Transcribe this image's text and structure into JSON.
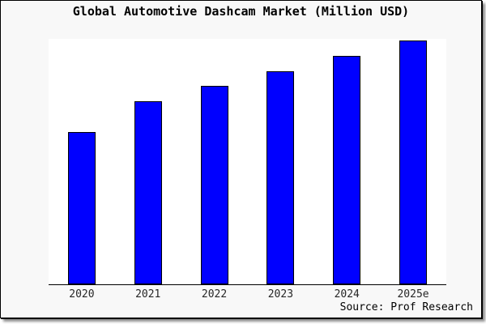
{
  "window": {
    "background_color": "#f8f8f8",
    "plot_background_color": "#ffffff",
    "frame_color": "#000000"
  },
  "chart_data": {
    "type": "bar",
    "title": "Global Automotive Dashcam Market (Million USD)",
    "categories": [
      "2020",
      "2021",
      "2022",
      "2023",
      "2024",
      "2025e"
    ],
    "values": [
      100,
      120,
      130,
      140,
      150,
      160
    ],
    "value_note": "no y-axis scale or gridlines shown; values are relative units estimated from bar heights",
    "xlabel": "",
    "ylabel": "",
    "ylim": [
      0,
      161
    ],
    "grid": false,
    "legend": null,
    "bar_color": "#0000ff",
    "bar_edge_color": "#000000",
    "axis_line_color": "#000000",
    "tick_label_color": "#262626",
    "source": "Source: Prof Research"
  }
}
